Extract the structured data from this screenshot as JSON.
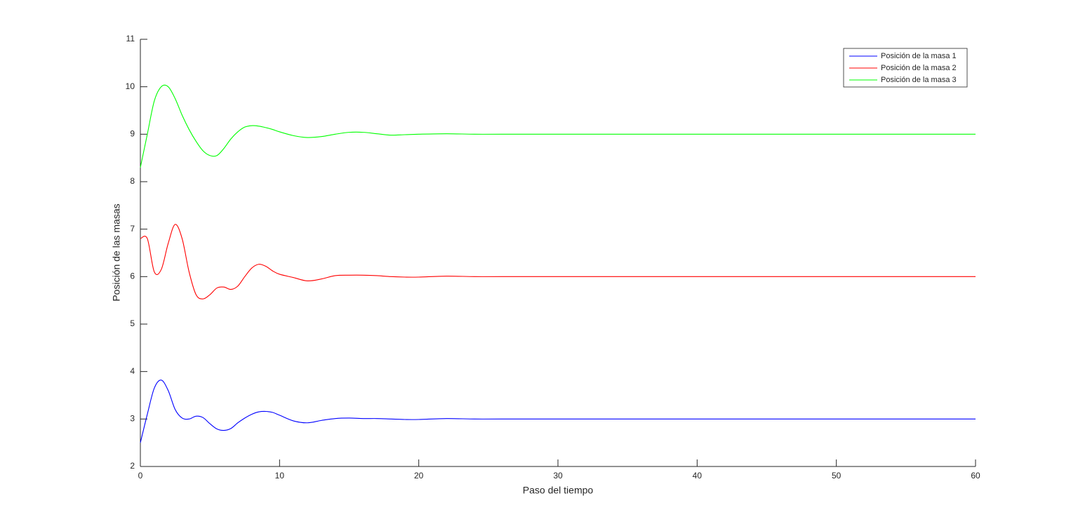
{
  "chart_data": {
    "type": "line",
    "x_label": "Paso del tiempo",
    "y_label": "Posición de las masas",
    "x": [
      0,
      0.5,
      1,
      1.5,
      2,
      2.5,
      3,
      3.5,
      4,
      4.5,
      5,
      5.5,
      6,
      6.5,
      7,
      7.5,
      8,
      8.5,
      9,
      9.5,
      10,
      11,
      12,
      13,
      14,
      15,
      16,
      17,
      18,
      19,
      20,
      22,
      24,
      26,
      30,
      40,
      50,
      60
    ],
    "series": [
      {
        "name": "Posición de la masa 1",
        "color": "#0000ff",
        "values": [
          2.5,
          3.1,
          3.65,
          3.82,
          3.6,
          3.2,
          3.02,
          3.0,
          3.06,
          3.03,
          2.9,
          2.79,
          2.76,
          2.8,
          2.92,
          3.02,
          3.1,
          3.15,
          3.16,
          3.14,
          3.08,
          2.96,
          2.92,
          2.97,
          3.01,
          3.02,
          3.01,
          3.01,
          3.0,
          2.99,
          2.99,
          3.01,
          3.0,
          3.0,
          3,
          3,
          3,
          3
        ]
      },
      {
        "name": "Posición de la masa 2",
        "color": "#ff0000",
        "values": [
          6.8,
          6.8,
          6.1,
          6.15,
          6.7,
          7.1,
          6.8,
          6.1,
          5.62,
          5.53,
          5.62,
          5.76,
          5.78,
          5.73,
          5.8,
          6.0,
          6.18,
          6.26,
          6.22,
          6.12,
          6.05,
          5.98,
          5.91,
          5.95,
          6.02,
          6.03,
          6.03,
          6.02,
          6.0,
          5.99,
          5.99,
          6.01,
          6.0,
          6,
          6,
          6,
          6,
          6
        ]
      },
      {
        "name": "Posición de la masa 3",
        "color": "#00ff00",
        "values": [
          8.3,
          9.0,
          9.7,
          10.0,
          10.0,
          9.75,
          9.4,
          9.1,
          8.85,
          8.65,
          8.55,
          8.55,
          8.7,
          8.9,
          9.05,
          9.15,
          9.18,
          9.17,
          9.14,
          9.1,
          9.05,
          8.97,
          8.93,
          8.95,
          9.0,
          9.04,
          9.04,
          9.01,
          8.98,
          8.99,
          9.0,
          9.01,
          9.0,
          9,
          9,
          9,
          9,
          9
        ]
      }
    ],
    "xlim": [
      0,
      60
    ],
    "xticks": [
      0,
      10,
      20,
      30,
      40,
      50,
      60
    ],
    "ylim": [
      2,
      11
    ],
    "yticks": [
      2,
      3,
      4,
      5,
      6,
      7,
      8,
      9,
      10,
      11
    ],
    "legend": "upper right",
    "grid": false
  }
}
